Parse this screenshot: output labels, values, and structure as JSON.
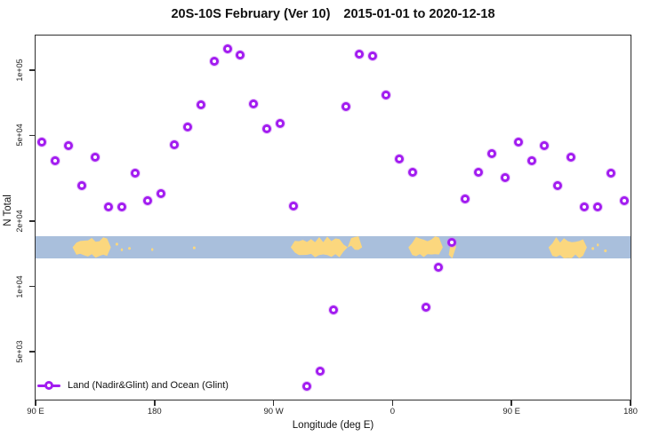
{
  "title": {
    "region_version": "20S-10S February (Ver 10)",
    "date_range": "2015-01-01 to 2020-12-18"
  },
  "axes": {
    "x_label": "Longitude (deg E)",
    "y_label": "N Total"
  },
  "legend": {
    "label": "Land (Nadir&Glint) and Ocean (Glint)"
  },
  "colors": {
    "marker": "#A21CF0",
    "marker_halo": "rgba(205,130,245,0.4)",
    "ocean": "#A9BFDC",
    "land": "#FBD77E",
    "axis": "#2e2e2e"
  },
  "chart_data": {
    "type": "scatter",
    "title": "20S-10S February (Ver 10)  2015-01-01 to 2020-12-18",
    "xlabel": "Longitude (deg E)",
    "ylabel": "N Total",
    "y_scale": "log",
    "y_ticks": [
      {
        "value": 100000,
        "label": "1e+05"
      },
      {
        "value": 50000,
        "label": "5e+04"
      },
      {
        "value": 20000,
        "label": "2e+04"
      },
      {
        "value": 10000,
        "label": "1e+04"
      },
      {
        "value": 5000,
        "label": "5e+03"
      }
    ],
    "x_ticks": [
      {
        "axis_deg": 0,
        "label": "90 E"
      },
      {
        "axis_deg": 90,
        "label": "180"
      },
      {
        "axis_deg": 180,
        "label": "90 W"
      },
      {
        "axis_deg": 270,
        "label": "0"
      },
      {
        "axis_deg": 360,
        "label": "90 E"
      },
      {
        "axis_deg": 450,
        "label": "180"
      }
    ],
    "x_axis_note": "axis spans 450 deg of longitude: 90E east through 180, 90W, 0, 90E to 180 (last 90 deg repeats the first)",
    "ylim": [
      2900,
      150000
    ],
    "series": [
      {
        "name": "Land (Nadir&Glint) and Ocean (Glint)",
        "points_axisdeg_n": [
          [
            5,
            46500
          ],
          [
            15,
            38200
          ],
          [
            25,
            44600
          ],
          [
            35,
            29200
          ],
          [
            45,
            39500
          ],
          [
            55,
            23400
          ],
          [
            65,
            23400
          ],
          [
            75,
            33500
          ],
          [
            85,
            24900
          ],
          [
            95,
            26900
          ],
          [
            105,
            45300
          ],
          [
            115,
            54800
          ],
          [
            125,
            69000
          ],
          [
            135,
            110000
          ],
          [
            145,
            126000
          ],
          [
            155,
            117000
          ],
          [
            165,
            70000
          ],
          [
            175,
            53600
          ],
          [
            185,
            56700
          ],
          [
            195,
            23500
          ],
          [
            205,
            3450
          ],
          [
            215,
            4070
          ],
          [
            225,
            7780
          ],
          [
            235,
            67900
          ],
          [
            245,
            118000
          ],
          [
            255,
            116000
          ],
          [
            265,
            77000
          ],
          [
            275,
            38800
          ],
          [
            285,
            33700
          ],
          [
            295,
            8030
          ],
          [
            305,
            12300
          ],
          [
            315,
            16000
          ],
          [
            325,
            25500
          ],
          [
            335,
            33700
          ],
          [
            345,
            41100
          ],
          [
            355,
            31900
          ],
          [
            365,
            46500
          ],
          [
            375,
            38200
          ],
          [
            385,
            44600
          ],
          [
            395,
            29200
          ],
          [
            405,
            39500
          ],
          [
            415,
            23400
          ],
          [
            425,
            23400
          ],
          [
            435,
            33500
          ],
          [
            445,
            24900
          ]
        ]
      }
    ],
    "map_strip": {
      "description": "world map band for latitude 20S-10S drawn across the middle of the plot (ocean blue, land yellow)",
      "land_patches": [
        {
          "start_deg": 28,
          "end_deg": 57,
          "shape": "full",
          "name": "australia-newguinea"
        },
        {
          "start_deg": 60.5,
          "end_deg": 62.5,
          "shape": "speck",
          "name": "islands"
        },
        {
          "start_deg": 64.5,
          "end_deg": 66,
          "shape": "speck",
          "name": "islands"
        },
        {
          "start_deg": 70,
          "end_deg": 72,
          "shape": "speck",
          "name": "islands"
        },
        {
          "start_deg": 87.5,
          "end_deg": 89,
          "shape": "speck",
          "name": "fiji"
        },
        {
          "start_deg": 119,
          "end_deg": 121,
          "shape": "speck",
          "name": "polynesia"
        },
        {
          "start_deg": 193,
          "end_deg": 236,
          "shape": "full",
          "name": "south-america"
        },
        {
          "start_deg": 236,
          "end_deg": 247,
          "shape": "tophalf",
          "name": "ne-brazil"
        },
        {
          "start_deg": 282,
          "end_deg": 308,
          "shape": "full",
          "name": "southern-africa"
        },
        {
          "start_deg": 312.5,
          "end_deg": 317,
          "shape": "sliver",
          "name": "madagascar"
        },
        {
          "start_deg": 388,
          "end_deg": 417,
          "shape": "full",
          "name": "australia-newguinea-repeat"
        },
        {
          "start_deg": 420.5,
          "end_deg": 422.5,
          "shape": "speck",
          "name": "islands-repeat"
        },
        {
          "start_deg": 424.5,
          "end_deg": 426,
          "shape": "speck",
          "name": "islands-repeat"
        },
        {
          "start_deg": 430,
          "end_deg": 432,
          "shape": "speck",
          "name": "islands-repeat"
        }
      ]
    }
  }
}
